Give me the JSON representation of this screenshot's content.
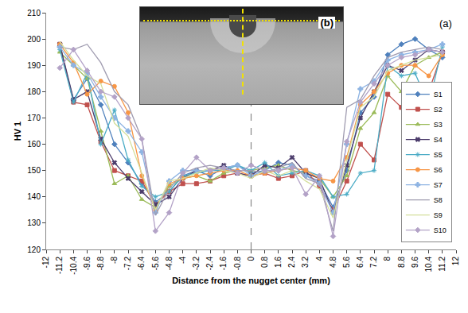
{
  "chart_data": {
    "type": "line",
    "x_label": "Distance from the nugget center (mm)",
    "y_label": "HV 1",
    "annotations": [
      "(a)",
      "(b)"
    ],
    "vline": {
      "x": 0
    },
    "x": [
      -11.2,
      -10.4,
      -9.6,
      -8.8,
      -8,
      -7.2,
      -6.4,
      -5.6,
      -4.8,
      -4,
      -3.2,
      -2.4,
      -1.6,
      -0.8,
      0,
      0.8,
      1.6,
      2.4,
      3.2,
      4,
      4.8,
      5.6,
      6.4,
      7.2,
      8,
      8.8,
      9.6,
      10.4,
      11.2
    ],
    "xlim": [
      -12,
      12
    ],
    "xticks": [
      -12,
      -11.2,
      -10.4,
      -9.6,
      -8.8,
      -8,
      -7.2,
      -6.4,
      -5.6,
      -4.8,
      -4,
      -3.2,
      -2.4,
      -1.6,
      -0.8,
      0,
      0.8,
      1.6,
      2.4,
      3.2,
      4,
      4.8,
      5.6,
      6.4,
      7.2,
      8,
      8.8,
      9.6,
      10.4,
      11.2,
      12
    ],
    "ylim": [
      120,
      210
    ],
    "yticks": [
      120,
      130,
      140,
      150,
      160,
      170,
      180,
      190,
      200,
      210
    ],
    "grid": false,
    "legend": "lower right",
    "series": [
      {
        "name": "S1",
        "color": "#4f81bd",
        "marker": "diamond",
        "values": [
          197,
          177,
          185,
          175,
          160,
          153,
          145,
          138,
          142,
          148,
          150,
          148,
          151,
          152,
          149,
          150,
          153,
          152,
          148,
          146,
          136,
          150,
          172,
          178,
          194,
          198,
          200,
          196,
          193
        ]
      },
      {
        "name": "S2",
        "color": "#c0504d",
        "marker": "square",
        "values": [
          198,
          176,
          175,
          161,
          150,
          148,
          146,
          137,
          142,
          145,
          145,
          146,
          148,
          149,
          148,
          149,
          147,
          148,
          150,
          144,
          135,
          146,
          160,
          154,
          179,
          174,
          178,
          180,
          195
        ]
      },
      {
        "name": "S3",
        "color": "#9bbb59",
        "marker": "triangle-up",
        "values": [
          195,
          190,
          185,
          165,
          145,
          148,
          139,
          136,
          144,
          147,
          148,
          146,
          149,
          150,
          150,
          151,
          152,
          150,
          149,
          147,
          140,
          148,
          166,
          172,
          186,
          180,
          190,
          193,
          195
        ]
      },
      {
        "name": "S4",
        "color": "#4b3b6b",
        "marker": "x",
        "values": [
          198,
          177,
          180,
          162,
          153,
          147,
          142,
          137,
          140,
          147,
          150,
          150,
          152,
          149,
          148,
          152,
          151,
          155,
          149,
          147,
          134,
          152,
          170,
          180,
          190,
          188,
          192,
          196,
          195
        ]
      },
      {
        "name": "S5",
        "color": "#4bacc6",
        "marker": "asterisk",
        "values": [
          196,
          176,
          187,
          160,
          173,
          154,
          144,
          140,
          142,
          148,
          149,
          150,
          150,
          152,
          150,
          153,
          148,
          149,
          150,
          148,
          140,
          141,
          149,
          150,
          190,
          186,
          187,
          175,
          197
        ]
      },
      {
        "name": "S6",
        "color": "#f79646",
        "marker": "circle",
        "values": [
          198,
          191,
          179,
          184,
          182,
          172,
          148,
          135,
          145,
          147,
          148,
          149,
          150,
          150,
          148,
          149,
          150,
          151,
          150,
          147,
          146,
          155,
          175,
          180,
          187,
          190,
          190,
          186,
          194
        ]
      },
      {
        "name": "S7",
        "color": "#8eb4e3",
        "marker": "cross",
        "values": [
          197,
          190,
          187,
          178,
          170,
          165,
          157,
          134,
          146,
          150,
          150,
          150,
          151,
          152,
          148,
          150,
          150,
          152,
          148,
          145,
          134,
          160,
          181,
          184,
          192,
          194,
          195,
          196,
          198
        ]
      },
      {
        "name": "S8",
        "color": "#a09cb0",
        "marker": "none",
        "values": [
          197,
          196,
          198,
          191,
          180,
          175,
          162,
          133,
          143,
          149,
          151,
          152,
          151,
          150,
          150,
          149,
          151,
          153,
          147,
          145,
          127,
          174,
          177,
          186,
          193,
          195,
          196,
          197,
          196
        ]
      },
      {
        "name": "S9",
        "color": "#d4df9c",
        "marker": "none",
        "values": [
          199,
          192,
          186,
          183,
          168,
          163,
          149,
          135,
          146,
          147,
          149,
          151,
          150,
          149,
          147,
          150,
          148,
          150,
          146,
          143,
          132,
          154,
          174,
          178,
          188,
          190,
          192,
          193,
          194
        ]
      },
      {
        "name": "S10",
        "color": "#b3a2c7",
        "marker": "diamond",
        "values": [
          189,
          196,
          188,
          180,
          178,
          170,
          162,
          127,
          134,
          149,
          155,
          150,
          151,
          149,
          152,
          150,
          150,
          151,
          141,
          148,
          125,
          161,
          176,
          183,
          190,
          193,
          194,
          196,
          195
        ]
      }
    ]
  }
}
